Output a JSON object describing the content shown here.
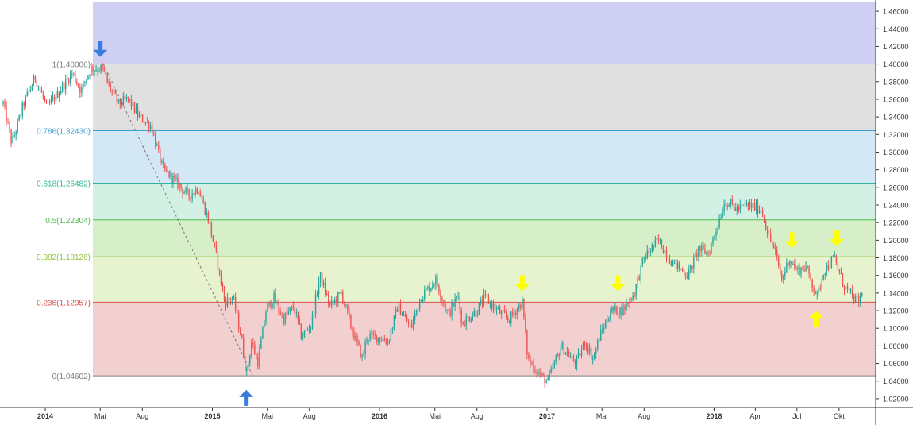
{
  "chart_data": {
    "type": "candlestick",
    "x_ticks": [
      {
        "label": "2014",
        "date": "2014-01-01",
        "bold": true
      },
      {
        "label": "Mai",
        "date": "2014-05-01",
        "bold": false
      },
      {
        "label": "Aug",
        "date": "2014-08-01",
        "bold": false
      },
      {
        "label": "2015",
        "date": "2015-01-01",
        "bold": true
      },
      {
        "label": "Mai",
        "date": "2015-05-01",
        "bold": false
      },
      {
        "label": "Aug",
        "date": "2015-08-01",
        "bold": false
      },
      {
        "label": "2016",
        "date": "2016-01-01",
        "bold": true
      },
      {
        "label": "Mai",
        "date": "2016-05-01",
        "bold": false
      },
      {
        "label": "Aug",
        "date": "2016-08-01",
        "bold": false
      },
      {
        "label": "2017",
        "date": "2017-01-01",
        "bold": true
      },
      {
        "label": "Mai",
        "date": "2017-05-01",
        "bold": false
      },
      {
        "label": "Aug",
        "date": "2017-08-01",
        "bold": false
      },
      {
        "label": "2018",
        "date": "2018-01-01",
        "bold": true
      },
      {
        "label": "Apr",
        "date": "2018-04-01",
        "bold": false
      },
      {
        "label": "Jul",
        "date": "2018-07-01",
        "bold": false
      },
      {
        "label": "Okt",
        "date": "2018-10-01",
        "bold": false
      }
    ],
    "y_ticks": [
      "1.46000",
      "1.44000",
      "1.42000",
      "1.40000",
      "1.38000",
      "1.36000",
      "1.34000",
      "1.32000",
      "1.30000",
      "1.28000",
      "1.26000",
      "1.24000",
      "1.22000",
      "1.20000",
      "1.18000",
      "1.16000",
      "1.14000",
      "1.12000",
      "1.10000",
      "1.08000",
      "1.06000",
      "1.04000",
      "1.02000"
    ],
    "x_range": [
      "2013-10-01",
      "2018-12-20"
    ],
    "y_range": [
      1.01,
      1.47
    ],
    "fib_start_date": "2014-04-15",
    "fib_levels": [
      {
        "label": "1(1.40006)",
        "value": 1.40006,
        "color": "#808080",
        "band": "#cfcff4",
        "band_to": 1.47
      },
      {
        "label": "0.786(1.32430)",
        "value": 1.3243,
        "color": "#3d9fcf",
        "band": "#e0e0e0",
        "band_to": 1.40006
      },
      {
        "label": "0.618(1.26482)",
        "value": 1.26482,
        "color": "#2fb59a",
        "band": "#d4e7f5",
        "band_to": 1.3243
      },
      {
        "label": "0.5(1.22304)",
        "value": 1.22304,
        "color": "#4cbf4c",
        "band": "#d2f0e3",
        "band_to": 1.26482
      },
      {
        "label": "0.382(1.18126)",
        "value": 1.18126,
        "color": "#8fc43a",
        "band": "#d6efc9",
        "band_to": 1.22304
      },
      {
        "label": "0.236(1.12957)",
        "value": 1.12957,
        "color": "#d9534f",
        "band": "#e7f2cf",
        "band_to": 1.18126
      },
      {
        "label": "0(1.04602)",
        "value": 1.04602,
        "color": "#808080",
        "band": "#f3d0d0",
        "band_to": 1.12957
      }
    ],
    "price_path": [
      [
        "2013-10-01",
        1.355
      ],
      [
        "2013-10-20",
        1.31
      ],
      [
        "2013-11-15",
        1.355
      ],
      [
        "2013-12-10",
        1.385
      ],
      [
        "2014-01-05",
        1.35
      ],
      [
        "2014-02-01",
        1.37
      ],
      [
        "2014-03-01",
        1.39
      ],
      [
        "2014-03-20",
        1.37
      ],
      [
        "2014-04-10",
        1.395
      ],
      [
        "2014-05-05",
        1.395
      ],
      [
        "2014-05-20",
        1.375
      ],
      [
        "2014-06-10",
        1.355
      ],
      [
        "2014-07-01",
        1.36
      ],
      [
        "2014-07-25",
        1.34
      ],
      [
        "2014-08-20",
        1.33
      ],
      [
        "2014-09-15",
        1.28
      ],
      [
        "2014-10-15",
        1.265
      ],
      [
        "2014-11-10",
        1.25
      ],
      [
        "2014-12-01",
        1.26
      ],
      [
        "2014-12-25",
        1.22
      ],
      [
        "2015-01-10",
        1.18
      ],
      [
        "2015-01-28",
        1.13
      ],
      [
        "2015-02-15",
        1.135
      ],
      [
        "2015-03-05",
        1.09
      ],
      [
        "2015-03-16",
        1.048
      ],
      [
        "2015-03-28",
        1.085
      ],
      [
        "2015-04-10",
        1.06
      ],
      [
        "2015-04-28",
        1.12
      ],
      [
        "2015-05-15",
        1.135
      ],
      [
        "2015-06-05",
        1.11
      ],
      [
        "2015-06-28",
        1.125
      ],
      [
        "2015-07-15",
        1.09
      ],
      [
        "2015-08-05",
        1.105
      ],
      [
        "2015-08-24",
        1.16
      ],
      [
        "2015-09-15",
        1.125
      ],
      [
        "2015-10-10",
        1.14
      ],
      [
        "2015-11-01",
        1.1
      ],
      [
        "2015-11-25",
        1.065
      ],
      [
        "2015-12-04",
        1.09
      ],
      [
        "2015-12-28",
        1.09
      ],
      [
        "2016-01-20",
        1.085
      ],
      [
        "2016-02-10",
        1.125
      ],
      [
        "2016-03-10",
        1.1
      ],
      [
        "2016-03-30",
        1.135
      ],
      [
        "2016-05-03",
        1.155
      ],
      [
        "2016-05-30",
        1.115
      ],
      [
        "2016-06-23",
        1.14
      ],
      [
        "2016-06-27",
        1.105
      ],
      [
        "2016-08-01",
        1.12
      ],
      [
        "2016-08-18",
        1.135
      ],
      [
        "2016-09-15",
        1.12
      ],
      [
        "2016-10-10",
        1.11
      ],
      [
        "2016-11-08",
        1.13
      ],
      [
        "2016-11-20",
        1.065
      ],
      [
        "2016-12-20",
        1.045
      ],
      [
        "2017-01-03",
        1.04
      ],
      [
        "2017-02-01",
        1.08
      ],
      [
        "2017-03-05",
        1.06
      ],
      [
        "2017-03-25",
        1.085
      ],
      [
        "2017-04-12",
        1.065
      ],
      [
        "2017-04-25",
        1.09
      ],
      [
        "2017-05-20",
        1.12
      ],
      [
        "2017-06-15",
        1.12
      ],
      [
        "2017-07-10",
        1.14
      ],
      [
        "2017-08-01",
        1.18
      ],
      [
        "2017-09-01",
        1.2
      ],
      [
        "2017-10-01",
        1.175
      ],
      [
        "2017-11-05",
        1.16
      ],
      [
        "2017-11-28",
        1.19
      ],
      [
        "2017-12-20",
        1.185
      ],
      [
        "2018-01-10",
        1.22
      ],
      [
        "2018-01-25",
        1.245
      ],
      [
        "2018-02-20",
        1.235
      ],
      [
        "2018-03-15",
        1.24
      ],
      [
        "2018-04-15",
        1.235
      ],
      [
        "2018-04-30",
        1.205
      ],
      [
        "2018-05-15",
        1.185
      ],
      [
        "2018-05-29",
        1.155
      ],
      [
        "2018-06-14",
        1.18
      ],
      [
        "2018-06-30",
        1.165
      ],
      [
        "2018-07-20",
        1.17
      ],
      [
        "2018-08-15",
        1.135
      ],
      [
        "2018-08-28",
        1.165
      ],
      [
        "2018-09-21",
        1.18
      ],
      [
        "2018-10-10",
        1.15
      ],
      [
        "2018-10-30",
        1.135
      ],
      [
        "2018-11-12",
        1.13
      ],
      [
        "2018-11-22",
        1.14
      ]
    ],
    "trendline": [
      [
        "2014-05-08",
        1.40006
      ],
      [
        "2015-03-30",
        1.04602
      ]
    ],
    "annotations": [
      {
        "type": "arrow-down",
        "color": "#3a7be0",
        "date": "2014-05-01",
        "value": 1.408
      },
      {
        "type": "arrow-up",
        "color": "#3a7be0",
        "date": "2015-03-16",
        "value": 1.03
      },
      {
        "type": "arrow-down",
        "color": "#ffff00",
        "date": "2016-11-08",
        "value": 1.142
      },
      {
        "type": "arrow-down",
        "color": "#ffff00",
        "date": "2017-06-05",
        "value": 1.142
      },
      {
        "type": "arrow-down",
        "color": "#ffff00",
        "date": "2018-06-20",
        "value": 1.191
      },
      {
        "type": "arrow-up",
        "color": "#ffff00",
        "date": "2018-08-12",
        "value": 1.12
      },
      {
        "type": "arrow-down",
        "color": "#ffff00",
        "date": "2018-09-26",
        "value": 1.193
      }
    ],
    "colors": {
      "up": "#26a69a",
      "down": "#ef5350",
      "axis": "#333333",
      "tick_text": "#333333"
    }
  }
}
